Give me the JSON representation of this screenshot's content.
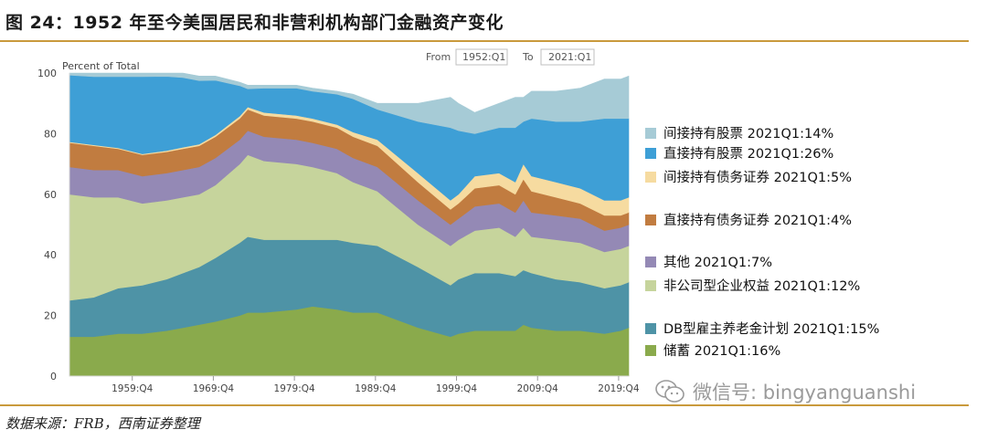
{
  "figure": {
    "title": "图 24：1952 年至今美国居民和非营利机构部门金融资产变化",
    "source": "数据来源：FRB，西南证券整理",
    "watermark": "微信号: bingyanguanshi",
    "watermark_icon": "wechat-icon"
  },
  "controls": {
    "from_label": "From",
    "from_value": "1952:Q1",
    "to_label": "To",
    "to_value": "2021:Q1"
  },
  "chart_data": {
    "type": "area",
    "stacked": true,
    "title": "",
    "xlabel": "",
    "ylabel": "Percent of Total",
    "xlim": [
      1952.0,
      2021.0
    ],
    "ylim": [
      0,
      100
    ],
    "yticks": [
      0,
      20,
      40,
      60,
      80,
      100
    ],
    "xticks": [
      {
        "label": "1959:Q4",
        "x": 1959.75
      },
      {
        "label": "1969:Q4",
        "x": 1969.75
      },
      {
        "label": "1979:Q4",
        "x": 1979.75
      },
      {
        "label": "1989:Q4",
        "x": 1989.75
      },
      {
        "label": "1999:Q4",
        "x": 1999.75
      },
      {
        "label": "2009:Q4",
        "x": 2009.75
      },
      {
        "label": "2019:Q4",
        "x": 2019.75
      }
    ],
    "grid": false,
    "legend_position": "right",
    "x": [
      1952,
      1955,
      1958,
      1961,
      1964,
      1966,
      1968,
      1970,
      1973,
      1974,
      1976,
      1980,
      1982,
      1985,
      1987,
      1990,
      1995,
      1999,
      2000,
      2002,
      2005,
      2007,
      2008,
      2009,
      2012,
      2015,
      2018,
      2020,
      2021
    ],
    "series": [
      {
        "name": "储蓄 2021Q1:16%",
        "color": "#8aaa4c",
        "values": [
          13,
          13,
          14,
          14,
          15,
          16,
          17,
          18,
          20,
          21,
          21,
          22,
          23,
          22,
          21,
          21,
          16,
          13,
          14,
          15,
          15,
          15,
          17,
          16,
          15,
          15,
          14,
          15,
          16
        ]
      },
      {
        "name": "DB型雇主养老金计划 2021Q1:15%",
        "color": "#4e93a6",
        "values": [
          12,
          13,
          15,
          16,
          17,
          18,
          19,
          21,
          24,
          25,
          24,
          23,
          22,
          23,
          23,
          22,
          20,
          17,
          18,
          19,
          19,
          18,
          18,
          18,
          17,
          16,
          15,
          15,
          15
        ]
      },
      {
        "name": "非公司型企业权益 2021Q1:12%",
        "color": "#c6d49c",
        "values": [
          35,
          33,
          30,
          27,
          26,
          25,
          24,
          24,
          26,
          27,
          26,
          25,
          24,
          22,
          20,
          18,
          14,
          13,
          13,
          14,
          15,
          13,
          14,
          12,
          13,
          13,
          12,
          12,
          12
        ]
      },
      {
        "name": "其他 2021Q1:7%",
        "color": "#9489b5",
        "values": [
          9,
          9,
          9,
          9,
          9,
          9,
          9,
          9,
          8,
          8,
          8,
          8,
          8,
          8,
          8,
          8,
          8,
          7,
          7,
          8,
          8,
          8,
          9,
          8,
          8,
          8,
          7,
          7,
          7
        ]
      },
      {
        "name": "直接持有债务证券 2021Q1:4%",
        "color": "#c17c40",
        "values": [
          8,
          8,
          7,
          7,
          7,
          7,
          7,
          7,
          7,
          7,
          7,
          7,
          7,
          7,
          7,
          7,
          6,
          5,
          5,
          6,
          6,
          6,
          7,
          7,
          6,
          5,
          5,
          4,
          4
        ]
      },
      {
        "name": "间接持有债务证券 2021Q1:5%",
        "color": "#f6dba0",
        "values": [
          0.3,
          0.3,
          0.3,
          0.3,
          0.4,
          0.5,
          0.5,
          0.6,
          0.8,
          0.8,
          1,
          1,
          1,
          1,
          1.5,
          2,
          3,
          3,
          3,
          4,
          4,
          4,
          5,
          5,
          5,
          5,
          5,
          5,
          5
        ]
      },
      {
        "name": "直接持有股票 2021Q1:26%",
        "color": "#3e9fd6",
        "values": [
          22,
          22.5,
          23.5,
          25.5,
          24.5,
          23,
          21,
          18,
          10,
          6,
          8,
          9,
          9,
          10,
          11,
          10,
          17,
          24,
          21,
          14,
          15,
          18,
          14,
          19,
          20,
          22,
          27,
          27,
          26
        ]
      },
      {
        "name": "间接持有股票 2021Q1:14%",
        "color": "#a6cbd6",
        "values": [
          0.7,
          1.2,
          1.2,
          1.2,
          1.1,
          1.5,
          1.5,
          1.4,
          1.2,
          1.2,
          1,
          1,
          1,
          1,
          1.5,
          2,
          6,
          10,
          9,
          7,
          8,
          10,
          8,
          9,
          10,
          11,
          13,
          13,
          14
        ]
      }
    ]
  }
}
